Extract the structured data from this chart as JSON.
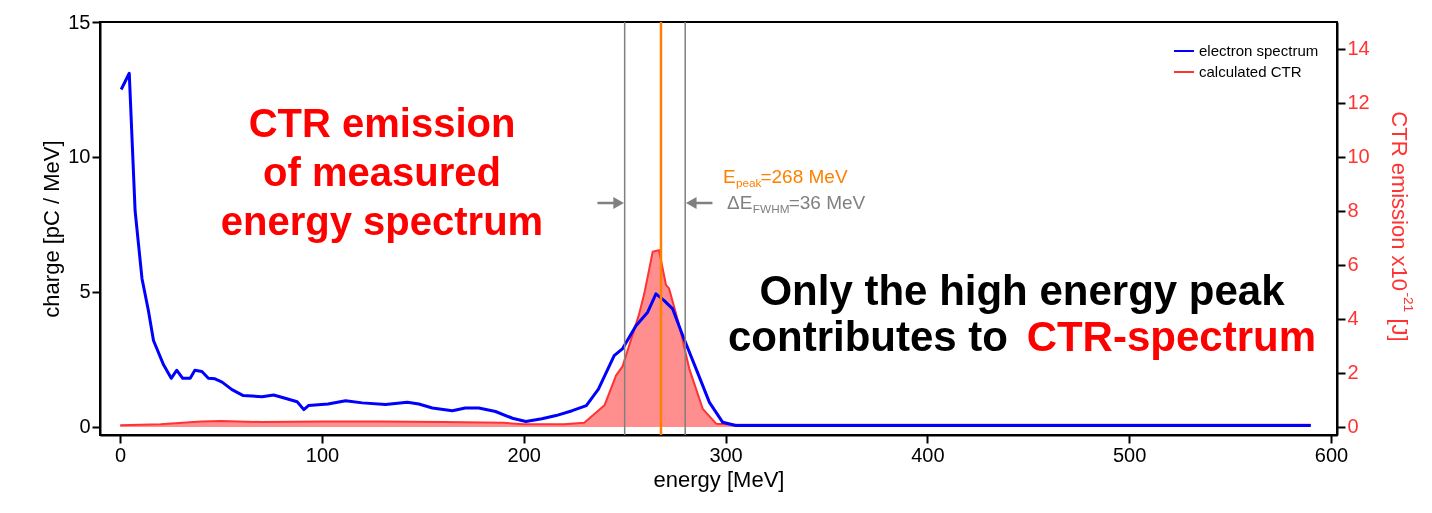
{
  "chart_data": {
    "type": "line",
    "xlabel": "energy [MeV]",
    "ylabel": "charge [pC / MeV]",
    "y2label": "CTR emission x10$^{-21}$ [J]",
    "xlim": [
      -10,
      603
    ],
    "xticks": [
      0,
      100,
      200,
      300,
      400,
      500,
      600
    ],
    "ylim": [
      -0.3,
      15
    ],
    "yticks": [
      0,
      5,
      10,
      15
    ],
    "y2lim": [
      -0.3,
      15
    ],
    "y2ticks": [
      0,
      2,
      4,
      6,
      8,
      10,
      12,
      14
    ],
    "grid": false,
    "legend": "top right",
    "series": [
      {
        "name": "electron spectrum",
        "color": "#0000ff",
        "x": [
          0.5,
          4.5,
          7.4,
          10.8,
          14,
          16.5,
          21.5,
          25.3,
          28,
          31,
          34.7,
          37,
          40.5,
          43.7,
          47,
          50.5,
          55.4,
          61,
          70.3,
          76,
          80,
          87.7,
          91,
          93.3,
          103,
          111.7,
          120,
          131.5,
          142.3,
          148,
          154.7,
          164.6,
          171,
          177.7,
          186,
          194.4,
          201,
          209,
          216,
          224,
          231,
          237,
          244.8,
          249,
          255.6,
          261.4,
          265.5,
          269.6,
          273.8,
          278.8,
          285.4,
          292,
          298.6,
          305,
          350,
          400,
          450,
          500,
          550,
          590
        ],
        "values": [
          12.5,
          13.1,
          8.0,
          5.5,
          4.3,
          3.2,
          2.3,
          1.8,
          2.1,
          1.8,
          1.8,
          2.1,
          2.05,
          1.8,
          1.78,
          1.66,
          1.38,
          1.16,
          1.12,
          1.18,
          1.1,
          0.93,
          0.64,
          0.79,
          0.85,
          0.97,
          0.89,
          0.83,
          0.91,
          0.85,
          0.7,
          0.6,
          0.7,
          0.7,
          0.57,
          0.32,
          0.2,
          0.3,
          0.42,
          0.6,
          0.79,
          1.4,
          2.64,
          2.9,
          3.75,
          4.25,
          4.93,
          4.68,
          4.37,
          3.38,
          2.15,
          0.91,
          0.17,
          0.05,
          0.05,
          0.05,
          0.05,
          0.05,
          0.05,
          0.05
        ]
      },
      {
        "name": "calculated CTR",
        "color": "#ff3333",
        "type": "area",
        "axis": "y2",
        "x": [
          0,
          20,
          40,
          50,
          70,
          100,
          130,
          160,
          190,
          200,
          220,
          230,
          240,
          245.7,
          249,
          257,
          259.7,
          263.9,
          267,
          270.5,
          272,
          277,
          282,
          288.7,
          295.3,
          305,
          400,
          500,
          590
        ],
        "values": [
          0.06,
          0.1,
          0.2,
          0.22,
          0.18,
          0.2,
          0.2,
          0.18,
          0.15,
          0.1,
          0.1,
          0.15,
          0.8,
          1.9,
          2.25,
          4.14,
          4.93,
          6.49,
          6.55,
          5.25,
          5.13,
          3.77,
          2.16,
          0.67,
          0.12,
          0.08,
          0.08,
          0.08,
          0.08
        ]
      }
    ],
    "ref_lines": [
      {
        "axis": "x",
        "value": 250,
        "label": null,
        "color": "#808080"
      },
      {
        "axis": "x",
        "value": 280,
        "label": null,
        "color": "#808080"
      },
      {
        "axis": "x",
        "value": 268,
        "label": "E$_{peak}$=268 MeV",
        "color": "#ff8000"
      }
    ],
    "annotations": [
      "CTR emission\nof measured\nenergy spectrum",
      "Only the high energy peak",
      "contributes to",
      "CTR-spectrum",
      "ΔE$_{FWHM}$=36 MeV"
    ]
  }
}
